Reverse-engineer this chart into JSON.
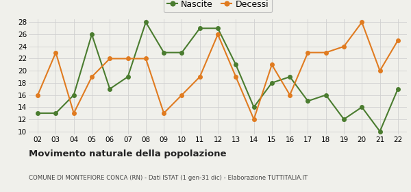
{
  "years": [
    "02",
    "03",
    "04",
    "05",
    "06",
    "07",
    "08",
    "09",
    "10",
    "11",
    "12",
    "13",
    "14",
    "15",
    "16",
    "17",
    "18",
    "19",
    "20",
    "21",
    "22"
  ],
  "nascite": [
    13,
    13,
    16,
    26,
    17,
    19,
    28,
    23,
    23,
    27,
    27,
    21,
    14,
    18,
    19,
    15,
    16,
    12,
    14,
    10,
    17
  ],
  "decessi": [
    16,
    23,
    13,
    19,
    22,
    22,
    22,
    13,
    16,
    19,
    26,
    19,
    12,
    21,
    16,
    23,
    23,
    24,
    28,
    20,
    25
  ],
  "nascite_color": "#4a7c2f",
  "decessi_color": "#e07b20",
  "title": "Movimento naturale della popolazione",
  "subtitle": "COMUNE DI MONTEFIORE CONCA (RN) - Dati ISTAT (1 gen-31 dic) - Elaborazione TUTTITALIA.IT",
  "ylabel_min": 10,
  "ylabel_max": 28,
  "legend_nascite": "Nascite",
  "legend_decessi": "Decessi",
  "background_color": "#f0f0eb",
  "grid_color": "#d0d0d0"
}
